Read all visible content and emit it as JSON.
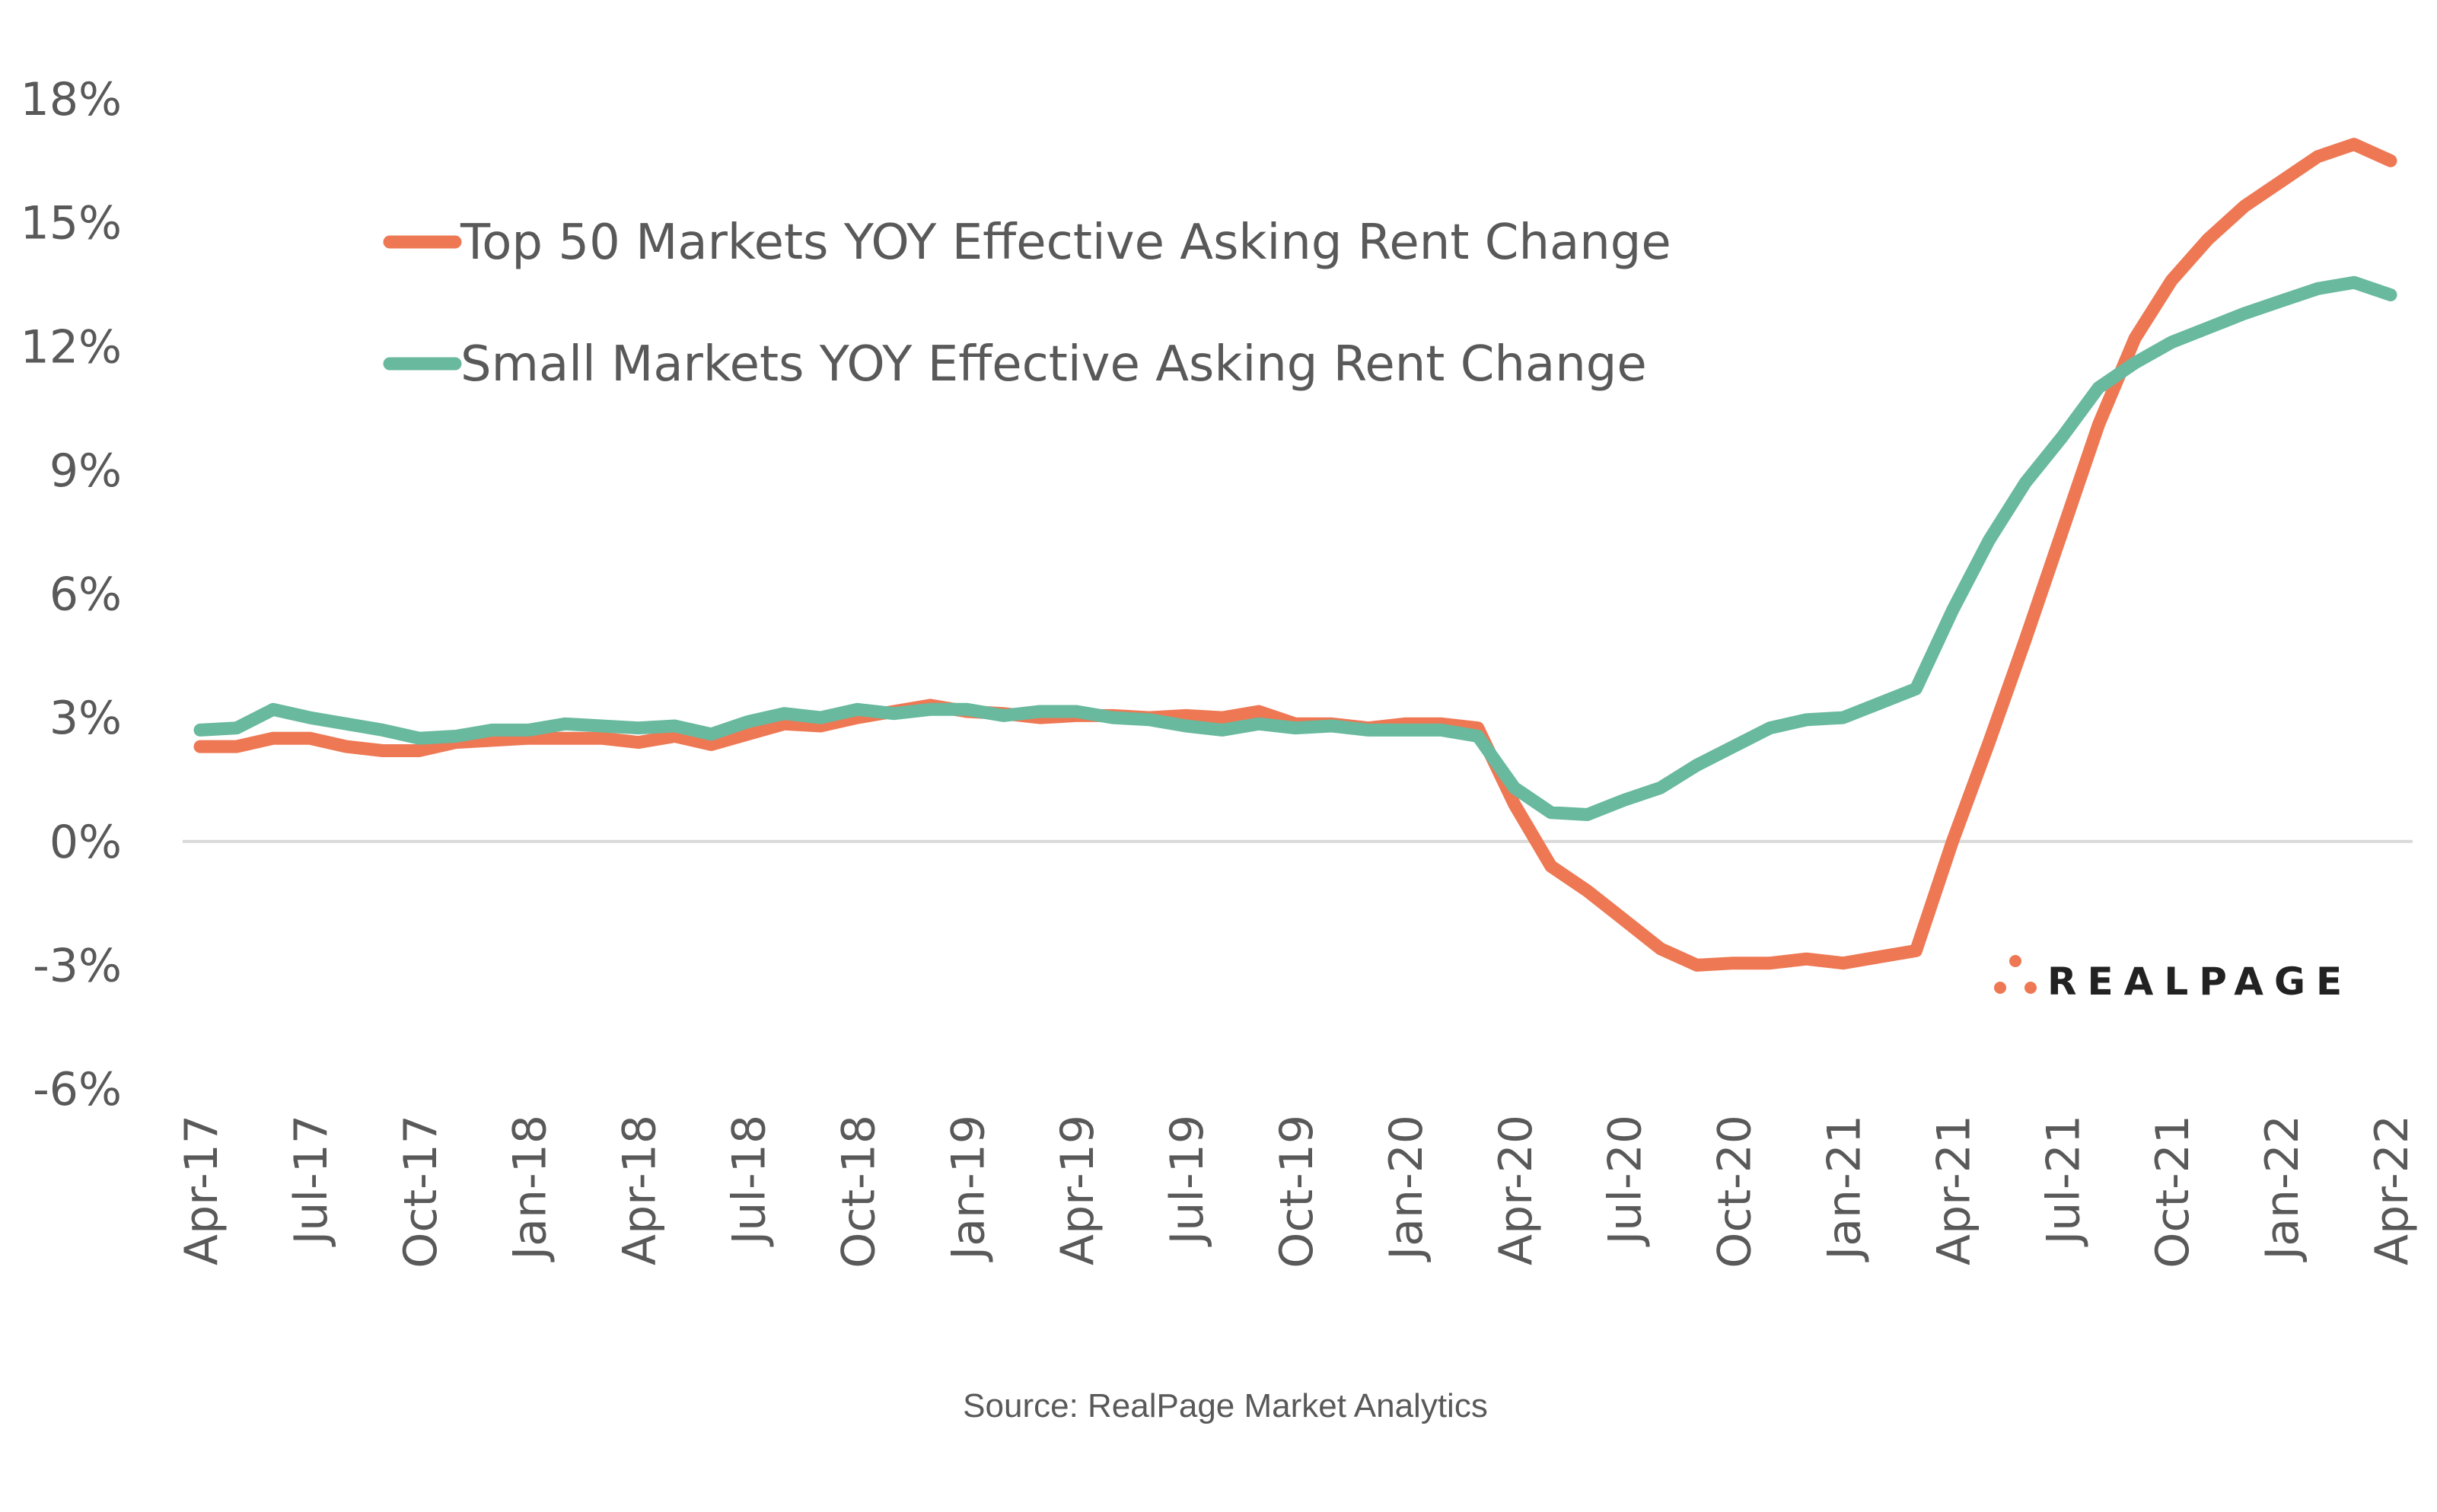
{
  "chart_data": {
    "type": "line",
    "title": "",
    "xlabel": "",
    "ylabel": "",
    "ylim": [
      -6,
      18
    ],
    "yticks": [
      "18%",
      "15%",
      "12%",
      "9%",
      "6%",
      "3%",
      "0%",
      "-3%",
      "-6%"
    ],
    "ytick_values": [
      18,
      15,
      12,
      9,
      6,
      3,
      0,
      -3,
      -6
    ],
    "grid": "zero line only",
    "legend_placement": "top-left",
    "x": [
      "Apr-17",
      "May-17",
      "Jun-17",
      "Jul-17",
      "Aug-17",
      "Sep-17",
      "Oct-17",
      "Nov-17",
      "Dec-17",
      "Jan-18",
      "Feb-18",
      "Mar-18",
      "Apr-18",
      "May-18",
      "Jun-18",
      "Jul-18",
      "Aug-18",
      "Sep-18",
      "Oct-18",
      "Nov-18",
      "Dec-18",
      "Jan-19",
      "Feb-19",
      "Mar-19",
      "Apr-19",
      "May-19",
      "Jun-19",
      "Jul-19",
      "Aug-19",
      "Sep-19",
      "Oct-19",
      "Nov-19",
      "Dec-19",
      "Jan-20",
      "Feb-20",
      "Mar-20",
      "Apr-20",
      "May-20",
      "Jun-20",
      "Jul-20",
      "Aug-20",
      "Sep-20",
      "Oct-20",
      "Nov-20",
      "Dec-20",
      "Jan-21",
      "Feb-21",
      "Mar-21",
      "Apr-21",
      "May-21",
      "Jun-21",
      "Jul-21",
      "Aug-21",
      "Sep-21",
      "Oct-21",
      "Nov-21",
      "Dec-21",
      "Jan-22",
      "Feb-22",
      "Mar-22",
      "Apr-22"
    ],
    "xtick_labels": [
      "Apr-17",
      "Jul-17",
      "Oct-17",
      "Jan-18",
      "Apr-18",
      "Jul-18",
      "Oct-18",
      "Jan-19",
      "Apr-19",
      "Jul-19",
      "Oct-19",
      "Jan-20",
      "Apr-20",
      "Jul-20",
      "Oct-20",
      "Jan-21",
      "Apr-21",
      "Jul-21",
      "Oct-21",
      "Jan-22",
      "Apr-22"
    ],
    "series": [
      {
        "name": "Top 50 Markets YOY Effective Asking Rent Change",
        "color": "#EE7854",
        "values": [
          2.3,
          2.3,
          2.5,
          2.5,
          2.3,
          2.2,
          2.2,
          2.4,
          2.45,
          2.5,
          2.5,
          2.5,
          2.4,
          2.55,
          2.35,
          2.6,
          2.85,
          2.8,
          3.0,
          3.15,
          3.3,
          3.15,
          3.1,
          3.0,
          3.05,
          3.05,
          3.0,
          3.05,
          3.0,
          3.15,
          2.85,
          2.85,
          2.75,
          2.85,
          2.85,
          2.75,
          0.9,
          -0.6,
          -1.2,
          -1.9,
          -2.6,
          -3.0,
          -2.95,
          -2.95,
          -2.85,
          -2.95,
          -2.8,
          -2.65,
          0.0,
          2.4,
          4.9,
          7.5,
          10.1,
          12.2,
          13.6,
          14.6,
          15.4,
          16.0,
          16.6,
          16.9,
          16.5
        ]
      },
      {
        "name": "Small Markets YOY Effective Asking Rent Change",
        "color": "#68B99E",
        "values": [
          2.7,
          2.75,
          3.2,
          3.0,
          2.85,
          2.7,
          2.5,
          2.55,
          2.7,
          2.7,
          2.85,
          2.8,
          2.75,
          2.8,
          2.6,
          2.9,
          3.1,
          3.0,
          3.2,
          3.1,
          3.2,
          3.2,
          3.05,
          3.15,
          3.15,
          3.0,
          2.95,
          2.8,
          2.7,
          2.85,
          2.75,
          2.8,
          2.7,
          2.7,
          2.7,
          2.55,
          1.3,
          0.7,
          0.65,
          1.0,
          1.3,
          1.85,
          2.3,
          2.75,
          2.95,
          3.0,
          3.35,
          3.7,
          5.6,
          7.3,
          8.7,
          9.8,
          11.0,
          11.6,
          12.1,
          12.45,
          12.8,
          13.1,
          13.4,
          13.55,
          13.25
        ]
      }
    ],
    "source": "Source: RealPage Market Analytics",
    "logo_text": "REALPAGE",
    "logo_color": "#EE7854"
  }
}
